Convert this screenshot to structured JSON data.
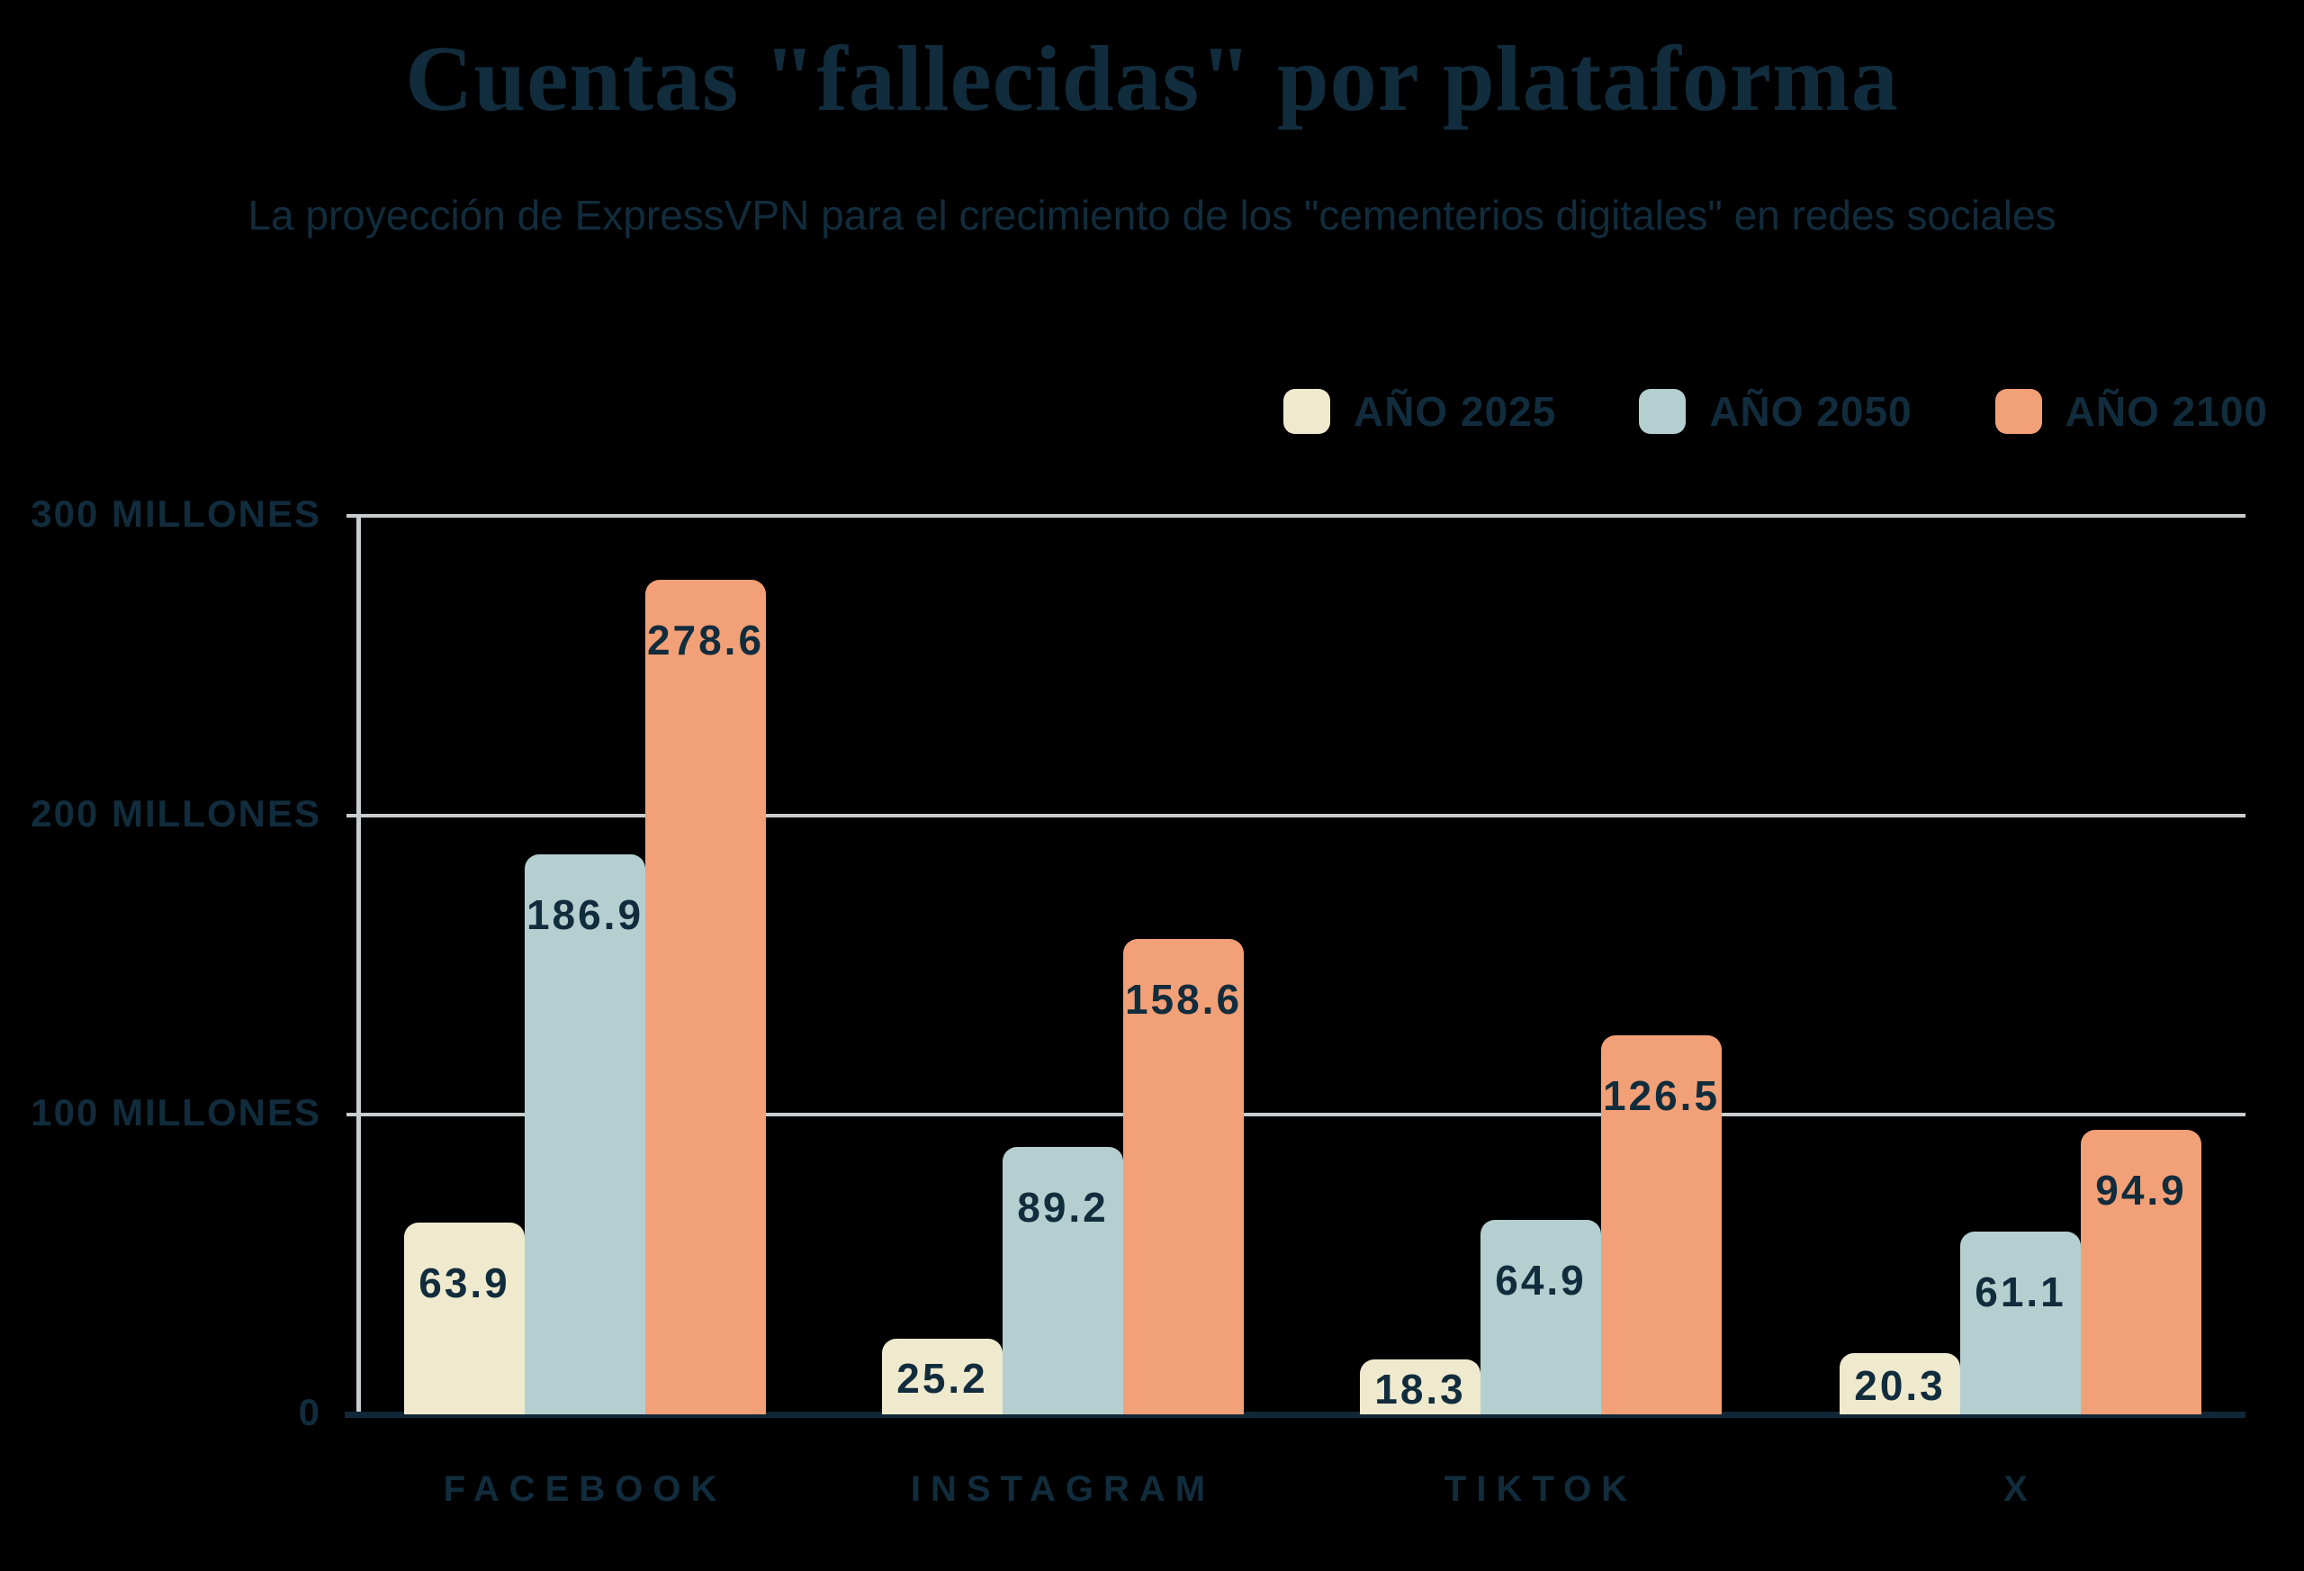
{
  "title": "Cuentas \"fallecidas\" por plataforma",
  "subtitle": "La proyección de ExpressVPN para el crecimiento de los \"cementerios digitales\" en redes sociales",
  "colors": {
    "background": "#000000",
    "text_navy": "#112C3C",
    "axis_baseline": "#0F2737",
    "gridline_gray": "#C9CDCE",
    "serie_2025": "#EFEACE",
    "serie_2050": "#B5CFD0",
    "serie_2100": "#F2A077"
  },
  "legend": [
    {
      "label": "AÑO 2025",
      "color": "#EFEACE"
    },
    {
      "label": "AÑO 2050",
      "color": "#B5CFD0"
    },
    {
      "label": "AÑO 2100",
      "color": "#F2A077"
    }
  ],
  "chart_data": {
    "type": "bar",
    "categories": [
      "FACEBOOK",
      "INSTAGRAM",
      "TIKTOK",
      "X"
    ],
    "series": [
      {
        "name": "AÑO 2025",
        "color": "#EFEACE",
        "values": [
          63.9,
          25.2,
          18.3,
          20.3
        ]
      },
      {
        "name": "AÑO 2050",
        "color": "#B5CFD0",
        "values": [
          186.9,
          89.2,
          64.9,
          61.1
        ]
      },
      {
        "name": "AÑO 2100",
        "color": "#F2A077",
        "values": [
          278.6,
          158.6,
          126.5,
          94.9
        ]
      }
    ],
    "title": "Cuentas \"fallecidas\" por plataforma",
    "subtitle": "La proyección de ExpressVPN para el crecimiento de los \"cementerios digitales\" en redes sociales",
    "xlabel": "",
    "ylabel": "",
    "ylim": [
      0,
      300
    ],
    "y_ticks": [
      {
        "label": "300 MILLONES",
        "value": 300
      },
      {
        "label": "200 MILLONES",
        "value": 200
      },
      {
        "label": "100 MILLONES",
        "value": 100
      },
      {
        "label": "0",
        "value": 0
      }
    ],
    "grid": "horizontal",
    "legend_position": "top-right",
    "value_labels": "inside-top"
  }
}
